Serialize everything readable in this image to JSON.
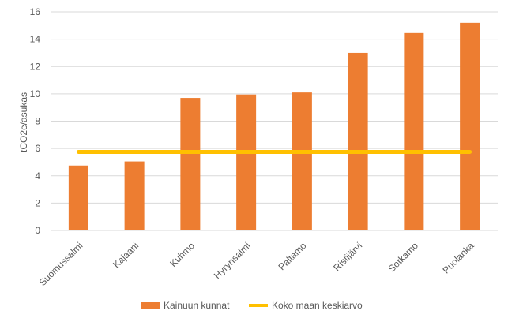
{
  "chart_data": {
    "type": "bar",
    "categories": [
      "Suomussalmi",
      "Kajaani",
      "Kuhmo",
      "Hyrynsalmi",
      "Paltamo",
      "Ristijärvi",
      "Sotkamo",
      "Puolanka"
    ],
    "series": [
      {
        "name": "Kainuun kunnat",
        "values": [
          4.75,
          5.05,
          9.7,
          9.95,
          10.1,
          13.0,
          14.45,
          15.2
        ],
        "color": "#ED7D31"
      }
    ],
    "reference_line": {
      "name": "Koko maan keskiarvo",
      "value": 5.75,
      "color": "#FFC000"
    },
    "ylabel": "tCO2e/asukas",
    "ylim": [
      0,
      16
    ],
    "yticks": [
      0,
      2,
      4,
      6,
      8,
      10,
      12,
      14,
      16
    ],
    "grid": true,
    "legend": "bottom"
  }
}
